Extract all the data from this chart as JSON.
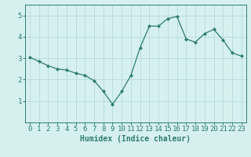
{
  "x": [
    0,
    1,
    2,
    3,
    4,
    5,
    6,
    7,
    8,
    9,
    10,
    11,
    12,
    13,
    14,
    15,
    16,
    17,
    18,
    19,
    20,
    21,
    22,
    23
  ],
  "y": [
    3.05,
    2.85,
    2.65,
    2.5,
    2.45,
    2.3,
    2.2,
    1.95,
    1.45,
    0.85,
    1.45,
    2.2,
    3.5,
    4.5,
    4.5,
    4.85,
    4.95,
    3.9,
    3.75,
    4.15,
    4.35,
    3.85,
    3.25,
    3.1
  ],
  "line_color": "#2e7d6e",
  "marker": "D",
  "marker_size": 2,
  "bg_color": "#d6f0f0",
  "grid_color": "#b8dada",
  "xlabel": "Humidex (Indice chaleur)",
  "xlim": [
    -0.5,
    23.5
  ],
  "ylim": [
    0,
    5.5
  ],
  "yticks": [
    1,
    2,
    3,
    4,
    5
  ],
  "xticks": [
    0,
    1,
    2,
    3,
    4,
    5,
    6,
    7,
    8,
    9,
    10,
    11,
    12,
    13,
    14,
    15,
    16,
    17,
    18,
    19,
    20,
    21,
    22,
    23
  ],
  "tick_color": "#2e7d6e",
  "label_fontsize": 6.5,
  "axis_fontsize": 7
}
